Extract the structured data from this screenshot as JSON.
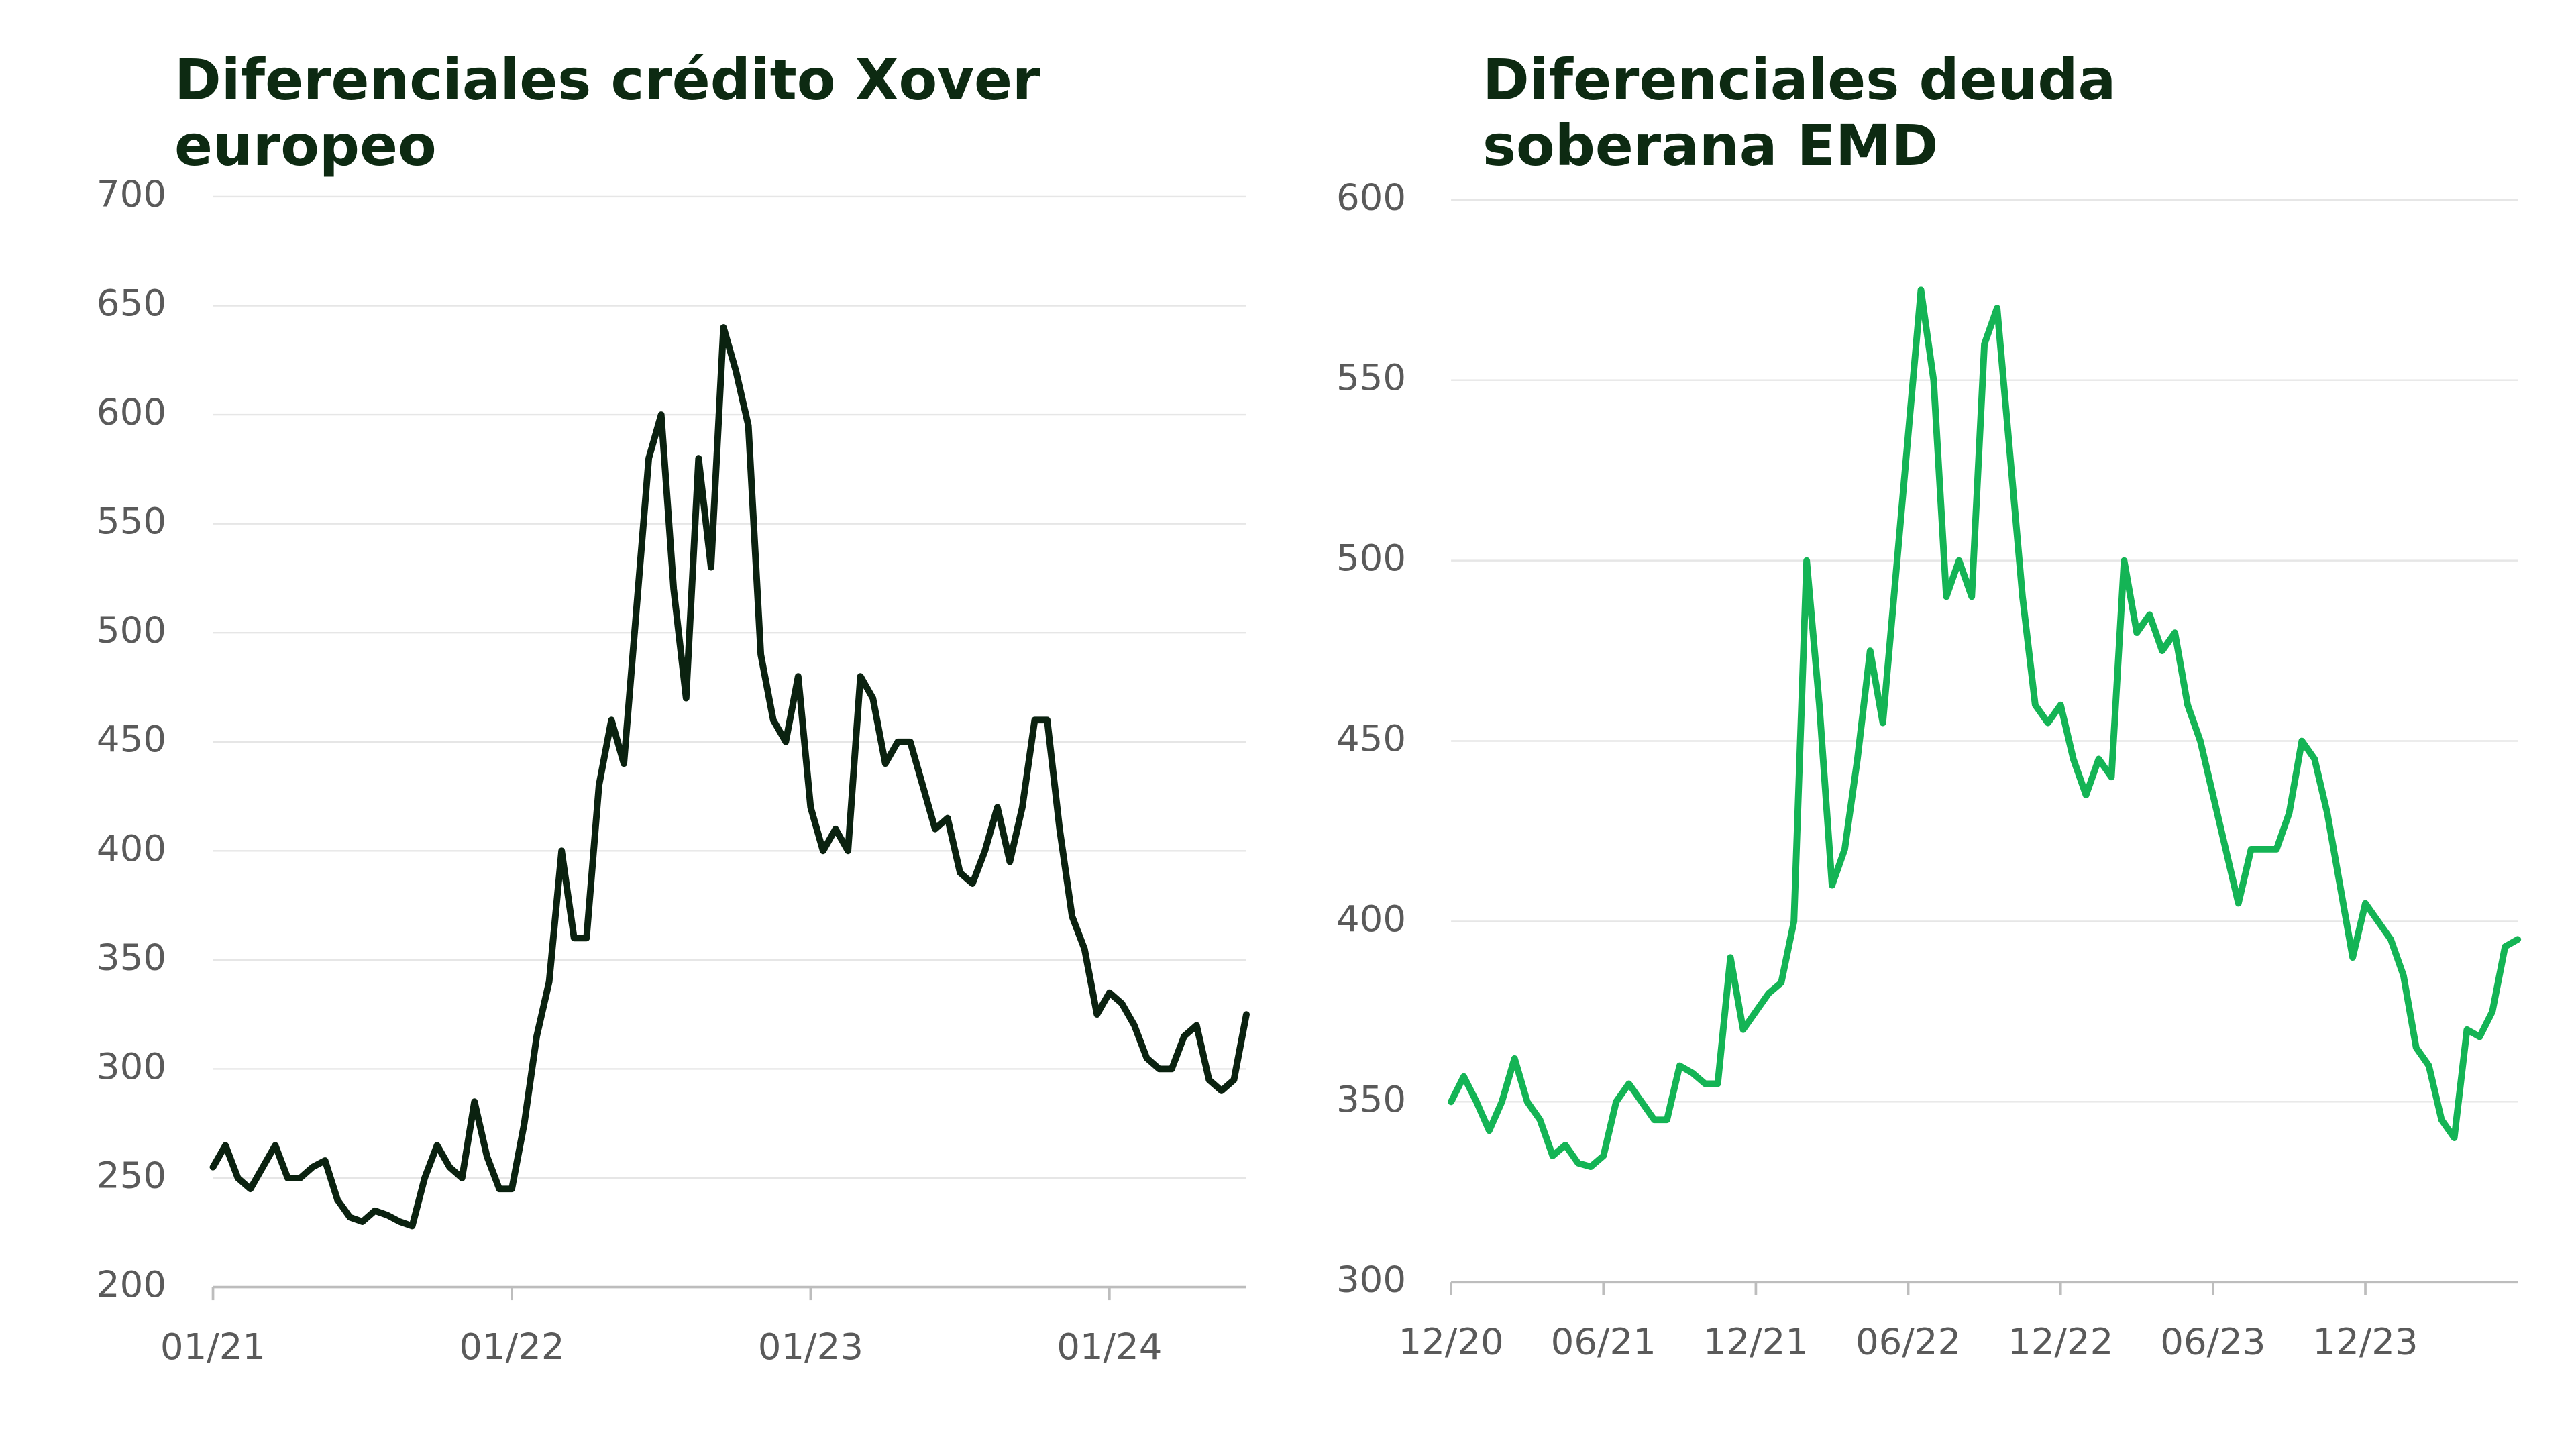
{
  "chart_data": [
    {
      "type": "line",
      "title": "Diferenciales crédito Xover europeo",
      "categories": [
        "01/21",
        null,
        null,
        null,
        null,
        null,
        null,
        null,
        null,
        null,
        null,
        null,
        null,
        null,
        null,
        null,
        null,
        null,
        null,
        null,
        null,
        null,
        null,
        null,
        "01/22",
        null,
        null,
        null,
        null,
        null,
        null,
        null,
        null,
        null,
        null,
        null,
        null,
        null,
        null,
        null,
        null,
        null,
        null,
        null,
        null,
        null,
        null,
        null,
        "01/23",
        null,
        null,
        null,
        null,
        null,
        null,
        null,
        null,
        null,
        null,
        null,
        null,
        null,
        null,
        null,
        null,
        null,
        null,
        null,
        null,
        null,
        null,
        null,
        "01/24",
        null,
        null,
        null,
        null,
        null,
        null,
        null,
        null,
        null,
        null,
        null
      ],
      "series": [
        {
          "color": "#0b2210",
          "values": [
            255,
            265,
            250,
            245,
            255,
            265,
            250,
            250,
            255,
            258,
            240,
            232,
            230,
            235,
            233,
            230,
            228,
            250,
            265,
            255,
            250,
            285,
            260,
            245,
            245,
            275,
            315,
            340,
            400,
            360,
            360,
            430,
            460,
            440,
            510,
            580,
            600,
            520,
            470,
            580,
            530,
            640,
            620,
            595,
            490,
            460,
            450,
            480,
            420,
            400,
            410,
            400,
            480,
            470,
            440,
            450,
            450,
            430,
            410,
            415,
            390,
            385,
            400,
            420,
            395,
            420,
            460,
            460,
            410,
            370,
            355,
            325,
            335,
            330,
            320,
            305,
            300,
            300,
            315,
            320,
            295,
            290,
            295,
            325
          ]
        }
      ],
      "ylim": [
        200,
        700
      ],
      "yticks": [
        200,
        250,
        300,
        350,
        400,
        450,
        500,
        550,
        600,
        650,
        700
      ],
      "grid": true
    },
    {
      "type": "line",
      "title": "Diferenciales deuda soberana EMD",
      "categories": [
        "12/20",
        null,
        null,
        null,
        null,
        null,
        null,
        null,
        null,
        null,
        null,
        null,
        "06/21",
        null,
        null,
        null,
        null,
        null,
        null,
        null,
        null,
        null,
        null,
        null,
        "12/21",
        null,
        null,
        null,
        null,
        null,
        null,
        null,
        null,
        null,
        null,
        null,
        "06/22",
        null,
        null,
        null,
        null,
        null,
        null,
        null,
        null,
        null,
        null,
        null,
        "12/22",
        null,
        null,
        null,
        null,
        null,
        null,
        null,
        null,
        null,
        null,
        null,
        "06/23",
        null,
        null,
        null,
        null,
        null,
        null,
        null,
        null,
        null,
        null,
        null,
        "12/23",
        null,
        null,
        null,
        null,
        null,
        null,
        null,
        null,
        null,
        null,
        null,
        null
      ],
      "series": [
        {
          "color": "#14b455",
          "values": [
            350,
            357,
            350,
            342,
            350,
            362,
            350,
            345,
            335,
            338,
            333,
            332,
            335,
            350,
            355,
            350,
            345,
            345,
            360,
            358,
            355,
            355,
            390,
            370,
            375,
            380,
            383,
            400,
            500,
            460,
            410,
            420,
            445,
            475,
            455,
            495,
            535,
            575,
            550,
            490,
            500,
            490,
            560,
            570,
            530,
            490,
            460,
            455,
            460,
            445,
            435,
            445,
            440,
            500,
            480,
            485,
            475,
            480,
            460,
            450,
            435,
            420,
            405,
            420,
            420,
            420,
            430,
            450,
            445,
            430,
            410,
            390,
            405,
            400,
            395,
            385,
            365,
            360,
            345,
            340,
            370,
            368,
            375,
            393,
            395
          ]
        }
      ],
      "ylim": [
        300,
        600
      ],
      "yticks": [
        300,
        350,
        400,
        450,
        500,
        550,
        600
      ],
      "grid": true
    }
  ]
}
